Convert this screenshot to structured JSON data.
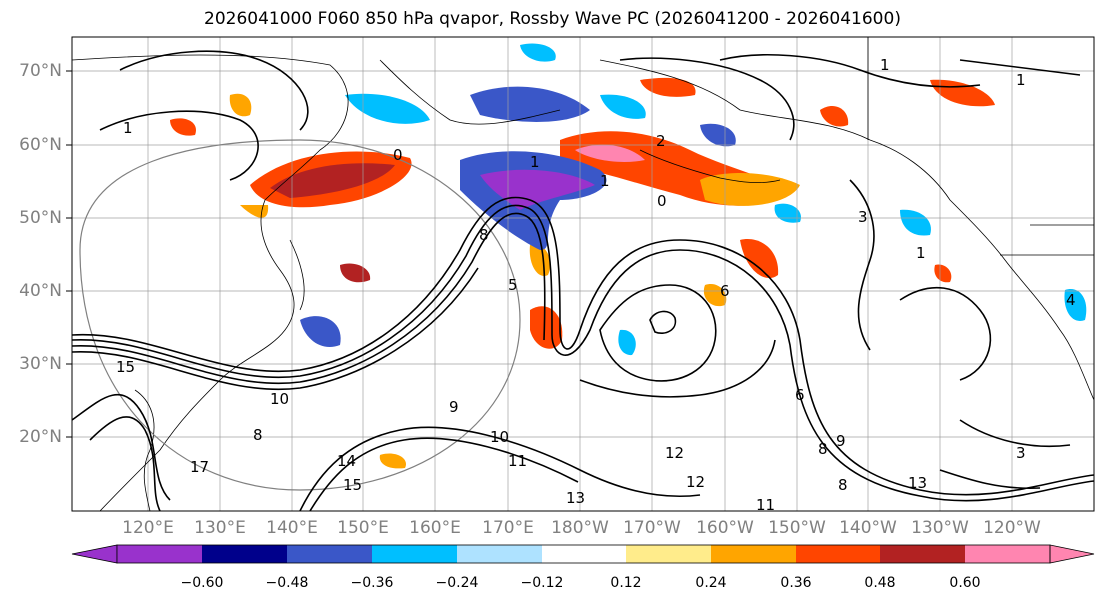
{
  "title": "2026041000 F060 850 hPa qvapor, Rossby Wave PC (2026041200 - 2026041600)",
  "lat_labels": [
    "70°N",
    "60°N",
    "50°N",
    "40°N",
    "30°N",
    "20°N"
  ],
  "lon_labels": [
    "120°E",
    "130°E",
    "140°E",
    "150°E",
    "160°E",
    "170°E",
    "180°W",
    "170°W",
    "160°W",
    "150°W",
    "140°W",
    "130°W",
    "120°W"
  ],
  "colorbar": {
    "colors": [
      "#9932cc",
      "#00008b",
      "#3a57c8",
      "#00bfff",
      "#aee2ff",
      "#ffffff",
      "#ffec8b",
      "#ffa500",
      "#ff4500",
      "#b22222",
      "#ff85b0"
    ],
    "tick_labels": [
      "−0.60",
      "−0.48",
      "−0.36",
      "−0.24",
      "−0.12",
      "0.12",
      "0.24",
      "0.36",
      "0.48",
      "0.60"
    ]
  },
  "contour_labels": [
    "1",
    "1",
    "1",
    "1",
    "1",
    "2",
    "0",
    "0",
    "1",
    "3",
    "8",
    "10",
    "8",
    "9",
    "10",
    "11",
    "12",
    "12",
    "13",
    "13",
    "14",
    "15",
    "11",
    "8",
    "8",
    "9",
    "5",
    "6",
    "6",
    "3",
    "4",
    "17",
    "15"
  ]
}
